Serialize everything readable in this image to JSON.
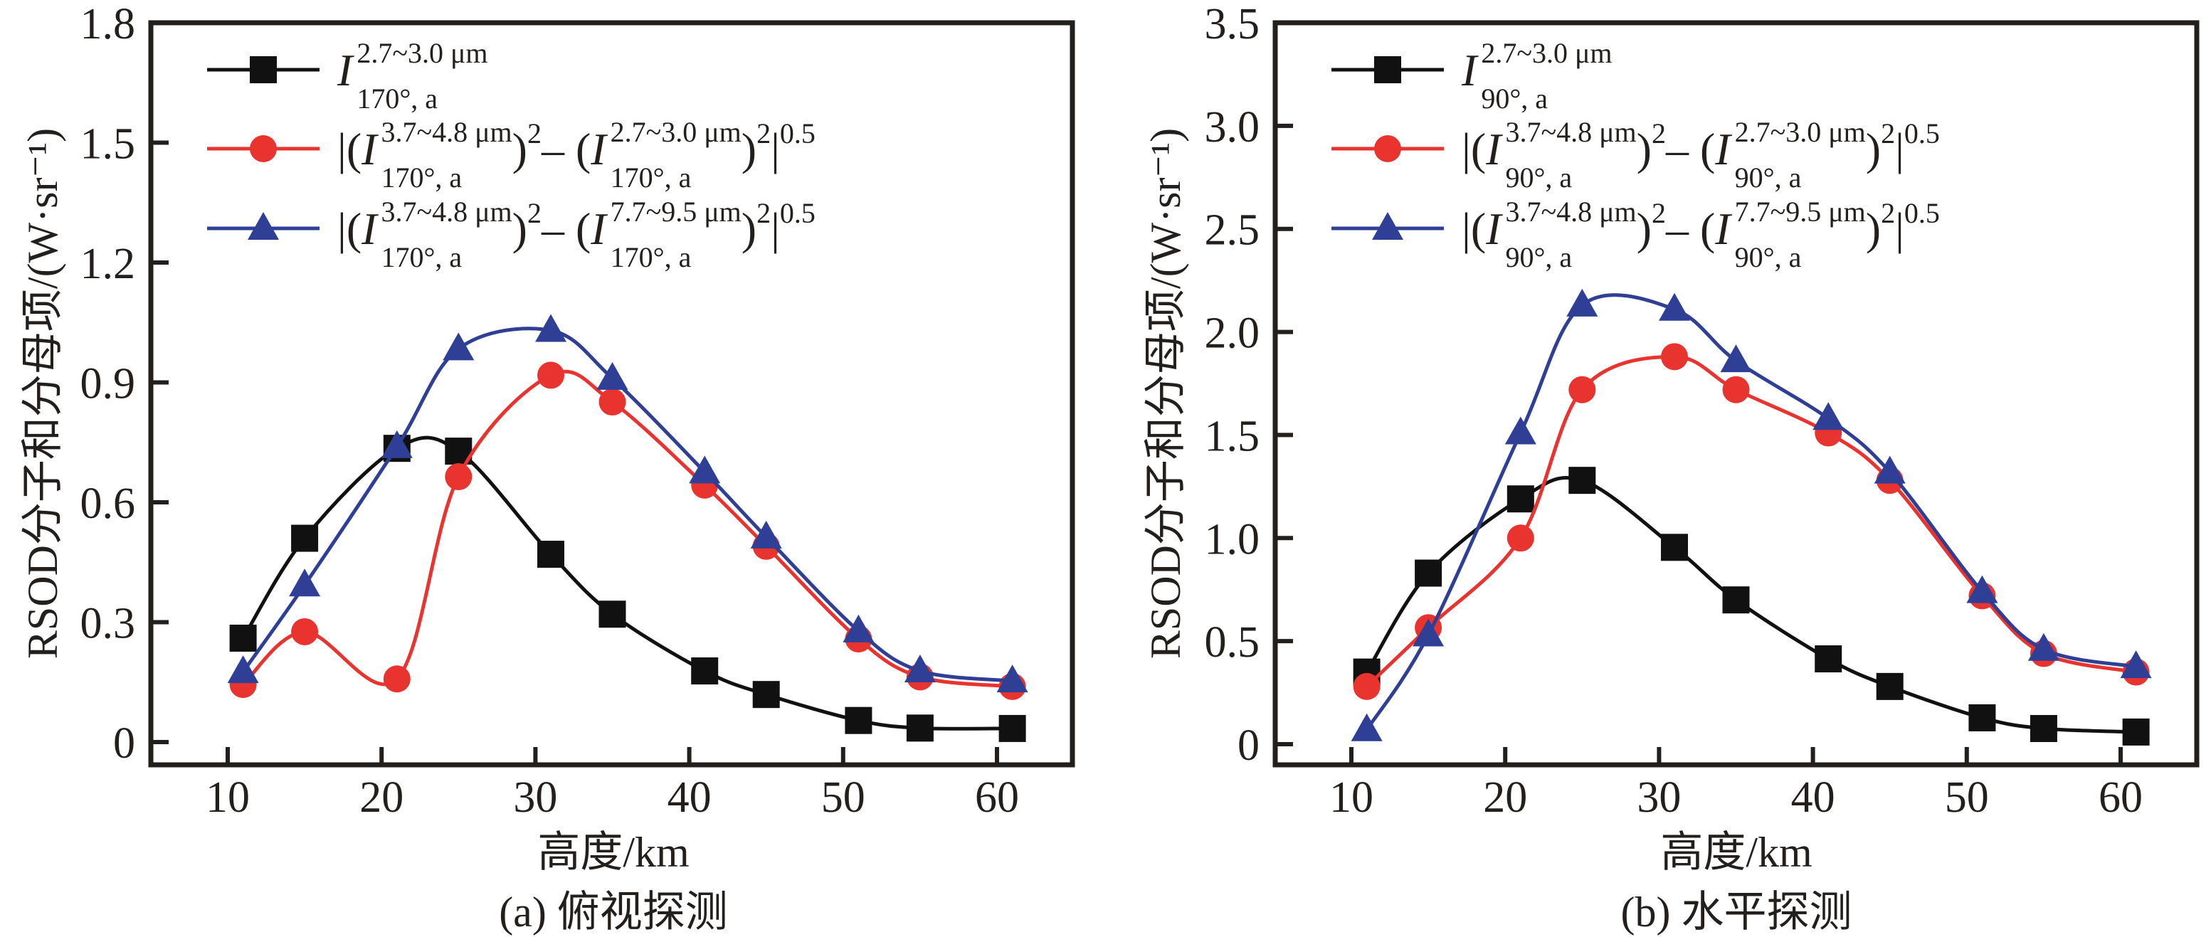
{
  "chart_data": [
    {
      "type": "line",
      "panel": "a",
      "caption": "(a) 俯视探测",
      "xlabel": "高度/km",
      "ylabel": "RSOD分子和分母项/(W·sr⁻¹)",
      "xlim": [
        5,
        65
      ],
      "ylim": [
        0,
        1.8
      ],
      "xticks": [
        10,
        20,
        30,
        40,
        50,
        60
      ],
      "xtick_labels": [
        "10",
        "20",
        "30",
        "40",
        "50",
        "60"
      ],
      "yticks": [
        0,
        0.3,
        0.6,
        0.9,
        1.2,
        1.5,
        1.8
      ],
      "ytick_labels": [
        "0",
        "0.3",
        "0.6",
        "0.9",
        "1.2",
        "1.5",
        "1.8"
      ],
      "grid": false,
      "legend_position": "top-left",
      "x": [
        11,
        15,
        21,
        25,
        31,
        35,
        41,
        45,
        51,
        55,
        61
      ],
      "series": [
        {
          "name": "I_170°,a^(2.7~3.0 μm)",
          "color": "#111111",
          "marker": "square",
          "values": [
            0.26,
            0.51,
            0.735,
            0.728,
            0.47,
            0.32,
            0.178,
            0.119,
            0.054,
            0.035,
            0.034
          ],
          "legend": [
            {
              "t": "I",
              "sup": "2.7~3.0 μm",
              "sub": "170°, a"
            }
          ]
        },
        {
          "name": "|(I_170°,a^(3.7~4.8 μm))^2 − (I_170°,a^(2.7~3.0 μm))^2|^0.5",
          "color": "#e8332f",
          "marker": "circle",
          "values": [
            0.144,
            0.276,
            0.158,
            0.664,
            0.918,
            0.851,
            0.643,
            0.49,
            0.258,
            0.163,
            0.139
          ],
          "legend": [
            {
              "t": "text",
              "v": "|("
            },
            {
              "t": "I",
              "sup": "3.7~4.8 μm",
              "sub": "170°, a"
            },
            {
              "t": "text",
              "v": ")"
            },
            {
              "t": "sup",
              "v": "2"
            },
            {
              "t": "text",
              "v": "– ("
            },
            {
              "t": "I",
              "sup": "2.7~3.0 μm",
              "sub": "170°, a"
            },
            {
              "t": "text",
              "v": ")"
            },
            {
              "t": "sup",
              "v": "2"
            },
            {
              "t": "text",
              "v": "|"
            },
            {
              "t": "sup",
              "v": "0.5"
            }
          ]
        },
        {
          "name": "|(I_170°,a^(3.7~4.8 μm))^2 − (I_170°,a^(7.7~9.5 μm))^2|^0.5",
          "color": "#2f3f96",
          "marker": "triangle",
          "values": [
            0.176,
            0.393,
            0.739,
            0.984,
            1.03,
            0.91,
            0.676,
            0.513,
            0.278,
            0.178,
            0.153
          ],
          "legend": [
            {
              "t": "text",
              "v": "|("
            },
            {
              "t": "I",
              "sup": "3.7~4.8 μm",
              "sub": "170°, a"
            },
            {
              "t": "text",
              "v": ")"
            },
            {
              "t": "sup",
              "v": "2"
            },
            {
              "t": "text",
              "v": "– ("
            },
            {
              "t": "I",
              "sup": "7.7~9.5 μm",
              "sub": "170°, a"
            },
            {
              "t": "text",
              "v": ")"
            },
            {
              "t": "sup",
              "v": "2"
            },
            {
              "t": "text",
              "v": "|"
            },
            {
              "t": "sup",
              "v": "0.5"
            }
          ]
        }
      ]
    },
    {
      "type": "line",
      "panel": "b",
      "caption": "(b) 水平探测",
      "xlabel": "高度/km",
      "ylabel": "RSOD分子和分母项/(W·sr⁻¹)",
      "xlim": [
        5,
        65
      ],
      "ylim": [
        0,
        3.5
      ],
      "xticks": [
        10,
        20,
        30,
        40,
        50,
        60
      ],
      "xtick_labels": [
        "10",
        "20",
        "30",
        "40",
        "50",
        "60"
      ],
      "yticks": [
        0,
        0.5,
        1.0,
        1.5,
        2.0,
        2.5,
        3.0,
        3.5
      ],
      "ytick_labels": [
        "0",
        "0.5",
        "1.0",
        "1.5",
        "2.0",
        "2.5",
        "3.0",
        "3.5"
      ],
      "grid": false,
      "legend_position": "top-left",
      "x": [
        11,
        15,
        21,
        25,
        31,
        35,
        41,
        45,
        51,
        55,
        61
      ],
      "series": [
        {
          "name": "I_90°,a^(2.7~3.0 μm)",
          "color": "#111111",
          "marker": "square",
          "values": [
            0.35,
            0.83,
            1.19,
            1.28,
            0.955,
            0.7,
            0.414,
            0.28,
            0.128,
            0.076,
            0.059
          ],
          "legend": [
            {
              "t": "I",
              "sup": "2.7~3.0 μm",
              "sub": "90°, a"
            }
          ]
        },
        {
          "name": "|(I_90°,a^(3.7~4.8 μm))^2 − (I_90°,a^(2.7~3.0 μm))^2|^0.5",
          "color": "#e8332f",
          "marker": "circle",
          "values": [
            0.28,
            0.565,
            1.0,
            1.72,
            1.88,
            1.72,
            1.51,
            1.28,
            0.72,
            0.44,
            0.35
          ],
          "legend": [
            {
              "t": "text",
              "v": "|("
            },
            {
              "t": "I",
              "sup": "3.7~4.8 μm",
              "sub": "90°, a"
            },
            {
              "t": "text",
              "v": ")"
            },
            {
              "t": "sup",
              "v": "2"
            },
            {
              "t": "text",
              "v": "– ("
            },
            {
              "t": "I",
              "sup": "2.7~3.0 μm",
              "sub": "90°, a"
            },
            {
              "t": "text",
              "v": ")"
            },
            {
              "t": "sup",
              "v": "2"
            },
            {
              "t": "text",
              "v": "|"
            },
            {
              "t": "sup",
              "v": "0.5"
            }
          ]
        },
        {
          "name": "|(I_90°,a^(3.7~4.8 μm))^2 − (I_90°,a^(7.7~9.5 μm))^2|^0.5",
          "color": "#2f3f96",
          "marker": "triangle",
          "values": [
            0.07,
            0.53,
            1.51,
            2.13,
            2.11,
            1.86,
            1.58,
            1.32,
            0.74,
            0.46,
            0.376
          ],
          "legend": [
            {
              "t": "text",
              "v": "|("
            },
            {
              "t": "I",
              "sup": "3.7~4.8 μm",
              "sub": "90°, a"
            },
            {
              "t": "text",
              "v": ")"
            },
            {
              "t": "sup",
              "v": "2"
            },
            {
              "t": "text",
              "v": "– ("
            },
            {
              "t": "I",
              "sup": "7.7~9.5 μm",
              "sub": "90°, a"
            },
            {
              "t": "text",
              "v": ")"
            },
            {
              "t": "sup",
              "v": "2"
            },
            {
              "t": "text",
              "v": "|"
            },
            {
              "t": "sup",
              "v": "0.5"
            }
          ]
        }
      ]
    }
  ]
}
